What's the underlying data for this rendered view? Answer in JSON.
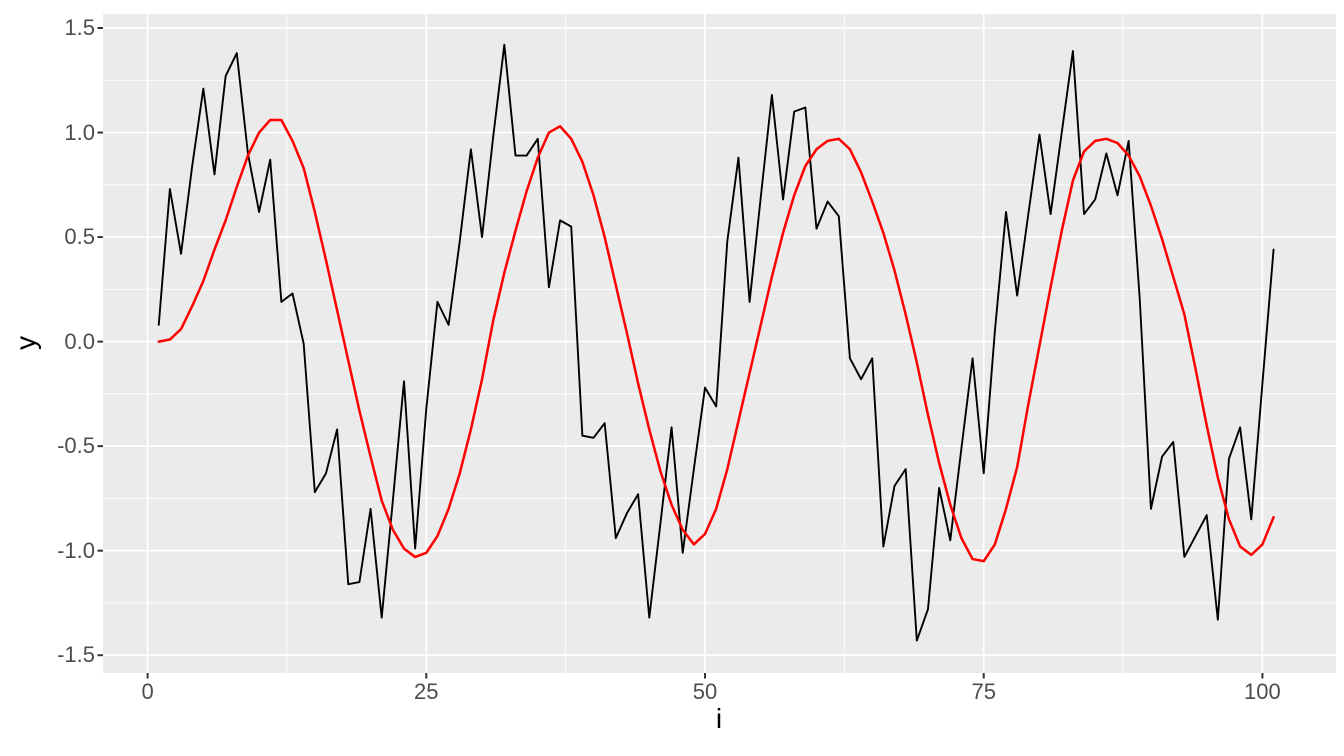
{
  "figure": {
    "kind": "ggplot-line-chart"
  },
  "colors": {
    "background": "#FFFFFF",
    "panel_background": "#EBEBEB",
    "grid_major": "#FFFFFF",
    "grid_minor": "#FFFFFF",
    "tick_mark": "#333333",
    "tick_label": "#4D4D4D",
    "axis_title": "#000000",
    "series_noisy": "#000000",
    "series_smooth": "#FF0000"
  },
  "axes": {
    "x": {
      "title": "i",
      "tick_labels": [
        "0",
        "25",
        "50",
        "75",
        "100"
      ]
    },
    "y": {
      "title": "y",
      "tick_labels": [
        "1.5",
        "1.0",
        "0.5",
        "0.0",
        "-0.5",
        "-1.0",
        "-1.5"
      ]
    }
  },
  "chart_data": {
    "type": "line",
    "title": "",
    "xlabel": "i",
    "ylabel": "y",
    "grid": true,
    "legend": false,
    "xlim": [
      -4,
      106.6
    ],
    "ylim": [
      -1.585,
      1.567
    ],
    "x_major_ticks": [
      0,
      25,
      50,
      75,
      100
    ],
    "x_minor_ticks": [
      12.5,
      37.5,
      62.5,
      87.5
    ],
    "y_major_ticks": [
      1.5,
      1.0,
      0.5,
      0.0,
      -0.5,
      -1.0,
      -1.5
    ],
    "y_minor_ticks": [
      1.25,
      0.75,
      0.25,
      -0.25,
      -0.75,
      -1.25
    ],
    "x": [
      1,
      2,
      3,
      4,
      5,
      6,
      7,
      8,
      9,
      10,
      11,
      12,
      13,
      14,
      15,
      16,
      17,
      18,
      19,
      20,
      21,
      22,
      23,
      24,
      25,
      26,
      27,
      28,
      29,
      30,
      31,
      32,
      33,
      34,
      35,
      36,
      37,
      38,
      39,
      40,
      41,
      42,
      43,
      44,
      45,
      46,
      47,
      48,
      49,
      50,
      51,
      52,
      53,
      54,
      55,
      56,
      57,
      58,
      59,
      60,
      61,
      62,
      63,
      64,
      65,
      66,
      67,
      68,
      69,
      70,
      71,
      72,
      73,
      74,
      75,
      76,
      77,
      78,
      79,
      80,
      81,
      82,
      83,
      84,
      85,
      86,
      87,
      88,
      89,
      90,
      91,
      92,
      93,
      94,
      95,
      96,
      97,
      98,
      99,
      100,
      101
    ],
    "series": [
      {
        "name": "noisy-black-line",
        "color": "#000000",
        "width": 1.9,
        "values": [
          0.08,
          0.73,
          0.42,
          0.84,
          1.21,
          0.8,
          1.27,
          1.38,
          0.9,
          0.62,
          0.87,
          0.19,
          0.23,
          -0.01,
          -0.72,
          -0.63,
          -0.42,
          -1.16,
          -1.15,
          -0.8,
          -1.32,
          -0.76,
          -0.19,
          -0.99,
          -0.32,
          0.19,
          0.08,
          0.48,
          0.92,
          0.5,
          0.98,
          1.42,
          0.89,
          0.89,
          0.97,
          0.26,
          0.58,
          0.55,
          -0.45,
          -0.46,
          -0.39,
          -0.94,
          -0.82,
          -0.73,
          -1.32,
          -0.87,
          -0.41,
          -1.01,
          -0.61,
          -0.22,
          -0.31,
          0.48,
          0.88,
          0.19,
          0.69,
          1.18,
          0.68,
          1.1,
          1.12,
          0.54,
          0.67,
          0.6,
          -0.08,
          -0.18,
          -0.08,
          -0.98,
          -0.69,
          -0.61,
          -1.43,
          -1.28,
          -0.7,
          -0.95,
          -0.51,
          -0.08,
          -0.63,
          0.05,
          0.62,
          0.22,
          0.61,
          0.99,
          0.61,
          1.0,
          1.39,
          0.61,
          0.68,
          0.9,
          0.7,
          0.96,
          0.2,
          -0.8,
          -0.55,
          -0.48,
          -1.03,
          -0.93,
          -0.83,
          -1.33,
          -0.56,
          -0.41,
          -0.85,
          -0.2,
          0.44
        ]
      },
      {
        "name": "smooth-red-line",
        "color": "#FF0000",
        "width": 2.5,
        "values": [
          0.0,
          0.01,
          0.06,
          0.17,
          0.29,
          0.44,
          0.58,
          0.74,
          0.89,
          1.0,
          1.06,
          1.06,
          0.96,
          0.83,
          0.62,
          0.39,
          0.15,
          -0.09,
          -0.33,
          -0.55,
          -0.76,
          -0.9,
          -0.99,
          -1.03,
          -1.01,
          -0.93,
          -0.8,
          -0.63,
          -0.42,
          -0.18,
          0.1,
          0.33,
          0.53,
          0.72,
          0.88,
          1.0,
          1.03,
          0.97,
          0.86,
          0.7,
          0.5,
          0.27,
          0.04,
          -0.2,
          -0.42,
          -0.62,
          -0.78,
          -0.9,
          -0.97,
          -0.92,
          -0.8,
          -0.61,
          -0.38,
          -0.15,
          0.08,
          0.31,
          0.52,
          0.7,
          0.84,
          0.92,
          0.96,
          0.97,
          0.92,
          0.81,
          0.67,
          0.52,
          0.34,
          0.13,
          -0.1,
          -0.35,
          -0.58,
          -0.78,
          -0.94,
          -1.04,
          -1.05,
          -0.97,
          -0.8,
          -0.6,
          -0.3,
          -0.02,
          0.26,
          0.53,
          0.77,
          0.91,
          0.96,
          0.97,
          0.95,
          0.89,
          0.79,
          0.65,
          0.49,
          0.31,
          0.13,
          -0.13,
          -0.4,
          -0.65,
          -0.85,
          -0.98,
          -1.02,
          -0.97,
          -0.84
        ]
      }
    ]
  }
}
